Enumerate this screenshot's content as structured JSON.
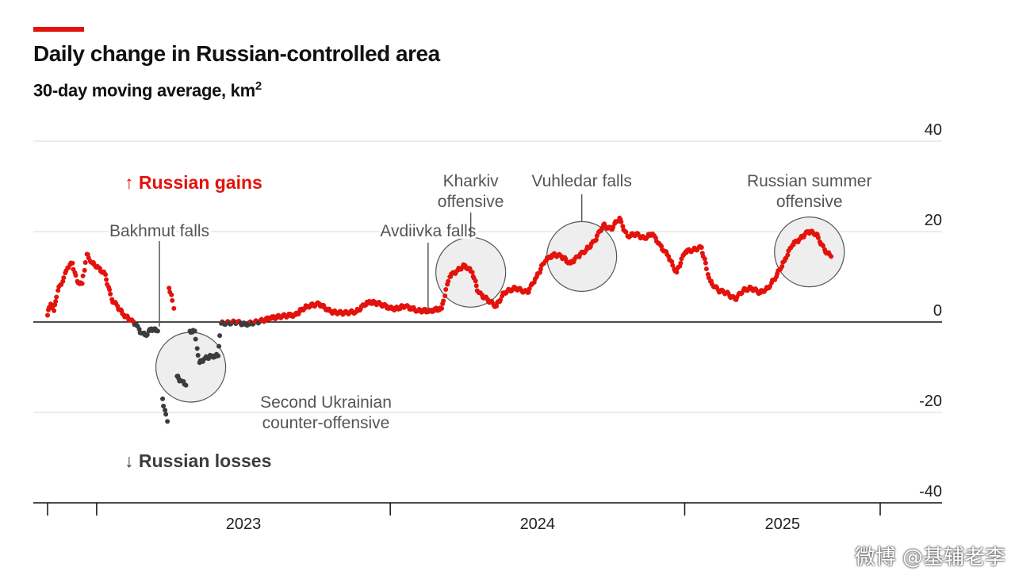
{
  "header": {
    "title": "Daily change in Russian-controlled area",
    "subtitle_text": "30-day moving average, km",
    "subtitle_sup": "2"
  },
  "colors": {
    "accent": "#e3120b",
    "gains": "#e3120b",
    "losses": "#3c3c3c",
    "grid": "#d9d9d9",
    "axis": "#111111",
    "annotation_text": "#555555",
    "circle_fill": "#eeeeee"
  },
  "chart_data": {
    "type": "scatter",
    "title": "Daily change in Russian-controlled area",
    "subtitle": "30-day moving average, km2",
    "ylim": [
      -40,
      40
    ],
    "y_ticks": [
      "40",
      "20",
      "0",
      "-20",
      "-40"
    ],
    "y_tick_values": [
      40,
      20,
      0,
      -20,
      -40
    ],
    "x_tick_labels": [
      "2023",
      "2024",
      "2025"
    ],
    "x_tick_years": [
      2023,
      2024,
      2025
    ],
    "x_domain": [
      "2022-11-01",
      "2025-09-01"
    ],
    "grid": true,
    "legend": {
      "gains_label": "Russian gains",
      "gains_arrow": "↑",
      "losses_label": "Russian losses",
      "losses_arrow": "↓"
    },
    "series": [
      {
        "points": [
          [
            "2022-11-01",
            1.5
          ],
          [
            "2022-11-05",
            4
          ],
          [
            "2022-11-09",
            2.5
          ],
          [
            "2022-11-14",
            7
          ],
          [
            "2022-11-20",
            9
          ],
          [
            "2022-11-26",
            12
          ],
          [
            "2022-12-02",
            13
          ],
          [
            "2022-12-08",
            9
          ],
          [
            "2022-12-14",
            8.5
          ],
          [
            "2022-12-20",
            15
          ],
          [
            "2022-12-27",
            13
          ],
          [
            "2023-01-04",
            12
          ],
          [
            "2023-01-12",
            10.5
          ],
          [
            "2023-01-20",
            5
          ],
          [
            "2023-01-27",
            3.5
          ],
          [
            "2023-02-04",
            1.5
          ],
          [
            "2023-02-12",
            0.5
          ],
          [
            "2023-02-19",
            -0.5
          ],
          [
            "2023-02-26",
            -2.5
          ],
          [
            "2023-03-04",
            -3
          ],
          [
            "2023-03-10",
            -1.5
          ],
          [
            "2023-03-18",
            -2
          ],
          [
            "2023-03-24",
            -17
          ],
          [
            "2023-03-27",
            -19.5
          ],
          [
            "2023-03-30",
            -22
          ],
          [
            "2023-04-01",
            7.5
          ],
          [
            "2023-04-04",
            6
          ],
          [
            "2023-04-07",
            3
          ],
          [
            "2023-04-11",
            -12
          ],
          [
            "2023-04-16",
            -13
          ],
          [
            "2023-04-22",
            -14
          ],
          [
            "2023-04-27",
            -2
          ],
          [
            "2023-05-03",
            -2
          ],
          [
            "2023-05-09",
            -9
          ],
          [
            "2023-05-16",
            -8
          ],
          [
            "2023-05-24",
            -7.5
          ],
          [
            "2023-06-01",
            -7.5
          ],
          [
            "2023-06-05",
            -0.3
          ],
          [
            "2023-06-15",
            -0.2
          ],
          [
            "2023-06-25",
            0
          ],
          [
            "2023-07-05",
            -0.5
          ],
          [
            "2023-07-20",
            0
          ],
          [
            "2023-08-05",
            0.8
          ],
          [
            "2023-08-20",
            1.3
          ],
          [
            "2023-09-05",
            1.6
          ],
          [
            "2023-09-20",
            3.5
          ],
          [
            "2023-10-05",
            4
          ],
          [
            "2023-10-20",
            2.2
          ],
          [
            "2023-11-05",
            2
          ],
          [
            "2023-11-20",
            2.3
          ],
          [
            "2023-12-05",
            4.5
          ],
          [
            "2023-12-20",
            4
          ],
          [
            "2024-01-05",
            2.8
          ],
          [
            "2024-01-20",
            3.5
          ],
          [
            "2024-02-05",
            2.5
          ],
          [
            "2024-02-20",
            2.5
          ],
          [
            "2024-03-05",
            3
          ],
          [
            "2024-03-15",
            10
          ],
          [
            "2024-03-25",
            11.5
          ],
          [
            "2024-04-03",
            12.5
          ],
          [
            "2024-04-12",
            11
          ],
          [
            "2024-04-20",
            6.5
          ],
          [
            "2024-05-01",
            5
          ],
          [
            "2024-05-12",
            3.5
          ],
          [
            "2024-05-22",
            6.5
          ],
          [
            "2024-06-05",
            7.5
          ],
          [
            "2024-06-20",
            6.5
          ],
          [
            "2024-07-01",
            10
          ],
          [
            "2024-07-12",
            13.5
          ],
          [
            "2024-07-22",
            15
          ],
          [
            "2024-08-01",
            14.5
          ],
          [
            "2024-08-12",
            13
          ],
          [
            "2024-08-22",
            14.5
          ],
          [
            "2024-09-01",
            16
          ],
          [
            "2024-09-12",
            18
          ],
          [
            "2024-09-22",
            21.5
          ],
          [
            "2024-10-02",
            20.5
          ],
          [
            "2024-10-12",
            23
          ],
          [
            "2024-10-22",
            19
          ],
          [
            "2024-11-02",
            19.5
          ],
          [
            "2024-11-12",
            18.5
          ],
          [
            "2024-11-22",
            19.5
          ],
          [
            "2024-12-02",
            17
          ],
          [
            "2024-12-12",
            14.5
          ],
          [
            "2024-12-22",
            11
          ],
          [
            "2025-01-02",
            15.5
          ],
          [
            "2025-01-12",
            16
          ],
          [
            "2025-01-22",
            16.5
          ],
          [
            "2025-02-02",
            9
          ],
          [
            "2025-02-12",
            7
          ],
          [
            "2025-02-22",
            6.5
          ],
          [
            "2025-03-05",
            5
          ],
          [
            "2025-03-15",
            7
          ],
          [
            "2025-03-25",
            7.5
          ],
          [
            "2025-04-05",
            6.5
          ],
          [
            "2025-04-15",
            7.5
          ],
          [
            "2025-04-25",
            10
          ],
          [
            "2025-05-05",
            13.5
          ],
          [
            "2025-05-15",
            17
          ],
          [
            "2025-05-25",
            18.5
          ],
          [
            "2025-06-04",
            20
          ],
          [
            "2025-06-14",
            19.5
          ],
          [
            "2025-06-24",
            16
          ],
          [
            "2025-07-02",
            14.5
          ]
        ]
      }
    ],
    "annotations": [
      {
        "text": "Bakhmut falls",
        "lines": [
          "Bakhmut falls"
        ],
        "date": "2023-03-20",
        "value": -1
      },
      {
        "text": "Avdiivka falls",
        "lines": [
          "Avdiivka falls"
        ],
        "date": "2024-02-17",
        "value": 2.5
      },
      {
        "text": "Kharkiv offensive",
        "lines": [
          "Kharkiv",
          "offensive"
        ],
        "date": "2024-04-10",
        "value": 11
      },
      {
        "text": "Vuhledar falls",
        "lines": [
          "Vuhledar falls"
        ],
        "date": "2024-08-26",
        "value": 14.5
      },
      {
        "text": "Russian summer offensive",
        "lines": [
          "Russian summer",
          "offensive"
        ],
        "date": "2025-06-05",
        "value": 15.5
      },
      {
        "text": "Second Ukrainian counter-offensive",
        "lines": [
          "Second Ukrainian",
          "counter-offensive"
        ],
        "date": "2023-04-28",
        "value": -10
      }
    ]
  },
  "watermark": "微博 @基辅老李"
}
